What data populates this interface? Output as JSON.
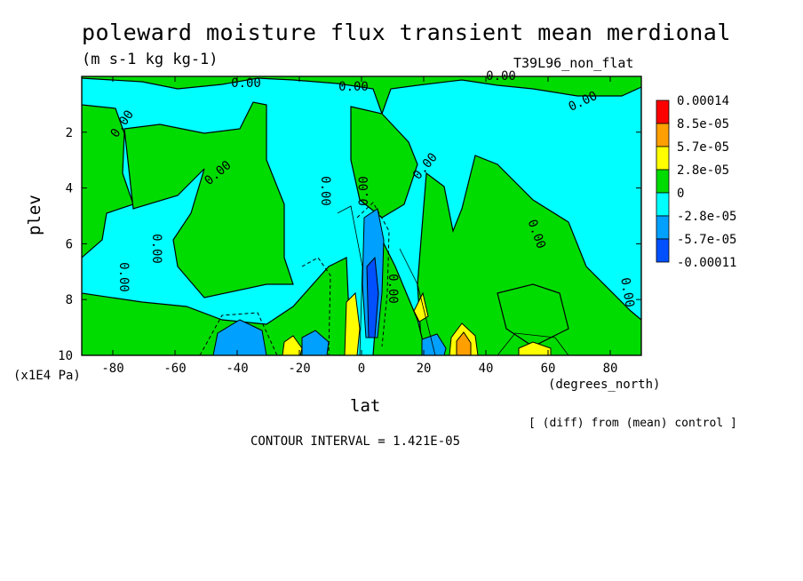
{
  "chart_data": {
    "type": "heatmap",
    "title": "poleward moisture flux transient mean merdional",
    "units": "(m s-1 kg kg-1)",
    "model_label": "T39L96_non_flat",
    "xlabel": "lat",
    "x_units": "(degrees_north)",
    "ylabel": "plev",
    "y_scale_note": "(x1E4 Pa)",
    "xlim": [
      -90,
      90
    ],
    "ylim": [
      10,
      0
    ],
    "xticks": [
      -80,
      -60,
      -40,
      -20,
      0,
      20,
      40,
      60,
      80
    ],
    "yticks": [
      2,
      4,
      6,
      8,
      10
    ],
    "colorbar": {
      "labels": [
        "0.00014",
        "8.5e-05",
        "5.7e-05",
        "2.8e-05",
        "0",
        "-2.8e-05",
        "-5.7e-05",
        "-0.00011"
      ],
      "colors": [
        "#ff0000",
        "#ff9f00",
        "#ffff00",
        "#00dc00",
        "#00ffff",
        "#00a0ff",
        "#0050ff"
      ]
    },
    "contour_labels": [
      "0.00",
      "0.00",
      "0.00",
      "0.00",
      "0.00",
      "0.00",
      "0.00",
      "0.00",
      "0.00",
      "0.00",
      "0.00",
      "0.00",
      "0.00",
      "0.00"
    ],
    "diff_note": "[ (diff) from (mean) control ]",
    "contour_interval": "CONTOUR INTERVAL = 1.421E-05"
  }
}
